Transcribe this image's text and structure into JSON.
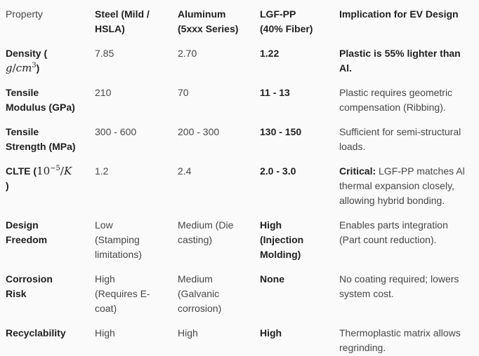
{
  "colors": {
    "background": "#fafafa",
    "text_primary": "#1f1f1f",
    "text_secondary": "#474747"
  },
  "table": {
    "header": {
      "property": "Property",
      "steel": "Steel (Mild / HSLA)",
      "aluminum": "Aluminum (5xxx Series)",
      "lgfpp": "LGF-PP (40% Fiber)",
      "implication": "Implication for EV Design"
    },
    "rows": [
      {
        "property": {
          "bold_open": "Density (",
          "math": {
            "g": "g",
            "slash": "/",
            "cm": "cm",
            "sup": "3"
          },
          "bold_close": ")"
        },
        "steel": "7.85",
        "aluminum": "2.70",
        "lgfpp": "1.22",
        "implication": {
          "bold": "Plastic is 55% lighter than Al."
        }
      },
      {
        "property": {
          "label": "Tensile Modulus (GPa)"
        },
        "steel": "210",
        "aluminum": "70",
        "lgfpp": "11 - 13",
        "implication": {
          "text": "Plastic requires geometric compensation (Ribbing)."
        }
      },
      {
        "property": {
          "label": "Tensile Strength (MPa)"
        },
        "steel": "300 - 600",
        "aluminum": "200 - 300",
        "lgfpp": "130 - 150",
        "implication": {
          "text": "Sufficient for semi-structural loads."
        }
      },
      {
        "property": {
          "bold_open": "CLTE (",
          "math": {
            "base": "10",
            "sup": "−5",
            "slash": "/",
            "k": "K"
          },
          "bold_close": ")"
        },
        "steel": "1.2",
        "aluminum": "2.4",
        "lgfpp": "2.0 - 3.0",
        "implication": {
          "bold": "Critical:",
          "text": " LGF-PP matches Al thermal expansion closely, allowing hybrid bonding."
        }
      },
      {
        "property": {
          "label": "Design Freedom"
        },
        "steel": "Low (Stamping limitations)",
        "aluminum": "Medium (Die casting)",
        "lgfpp": "High (Injection Molding)",
        "implication": {
          "text": "Enables parts integration (Part count reduction)."
        }
      },
      {
        "property": {
          "label": "Corrosion Risk"
        },
        "steel": "High (Requires E-coat)",
        "aluminum": "Medium (Galvanic corrosion)",
        "lgfpp": "None",
        "implication": {
          "text": "No coating required; lowers system cost."
        }
      },
      {
        "property": {
          "label": "Recyclability"
        },
        "steel": "High",
        "aluminum": "High",
        "lgfpp": "High",
        "implication": {
          "text": "Thermoplastic matrix allows regrinding."
        }
      }
    ]
  }
}
